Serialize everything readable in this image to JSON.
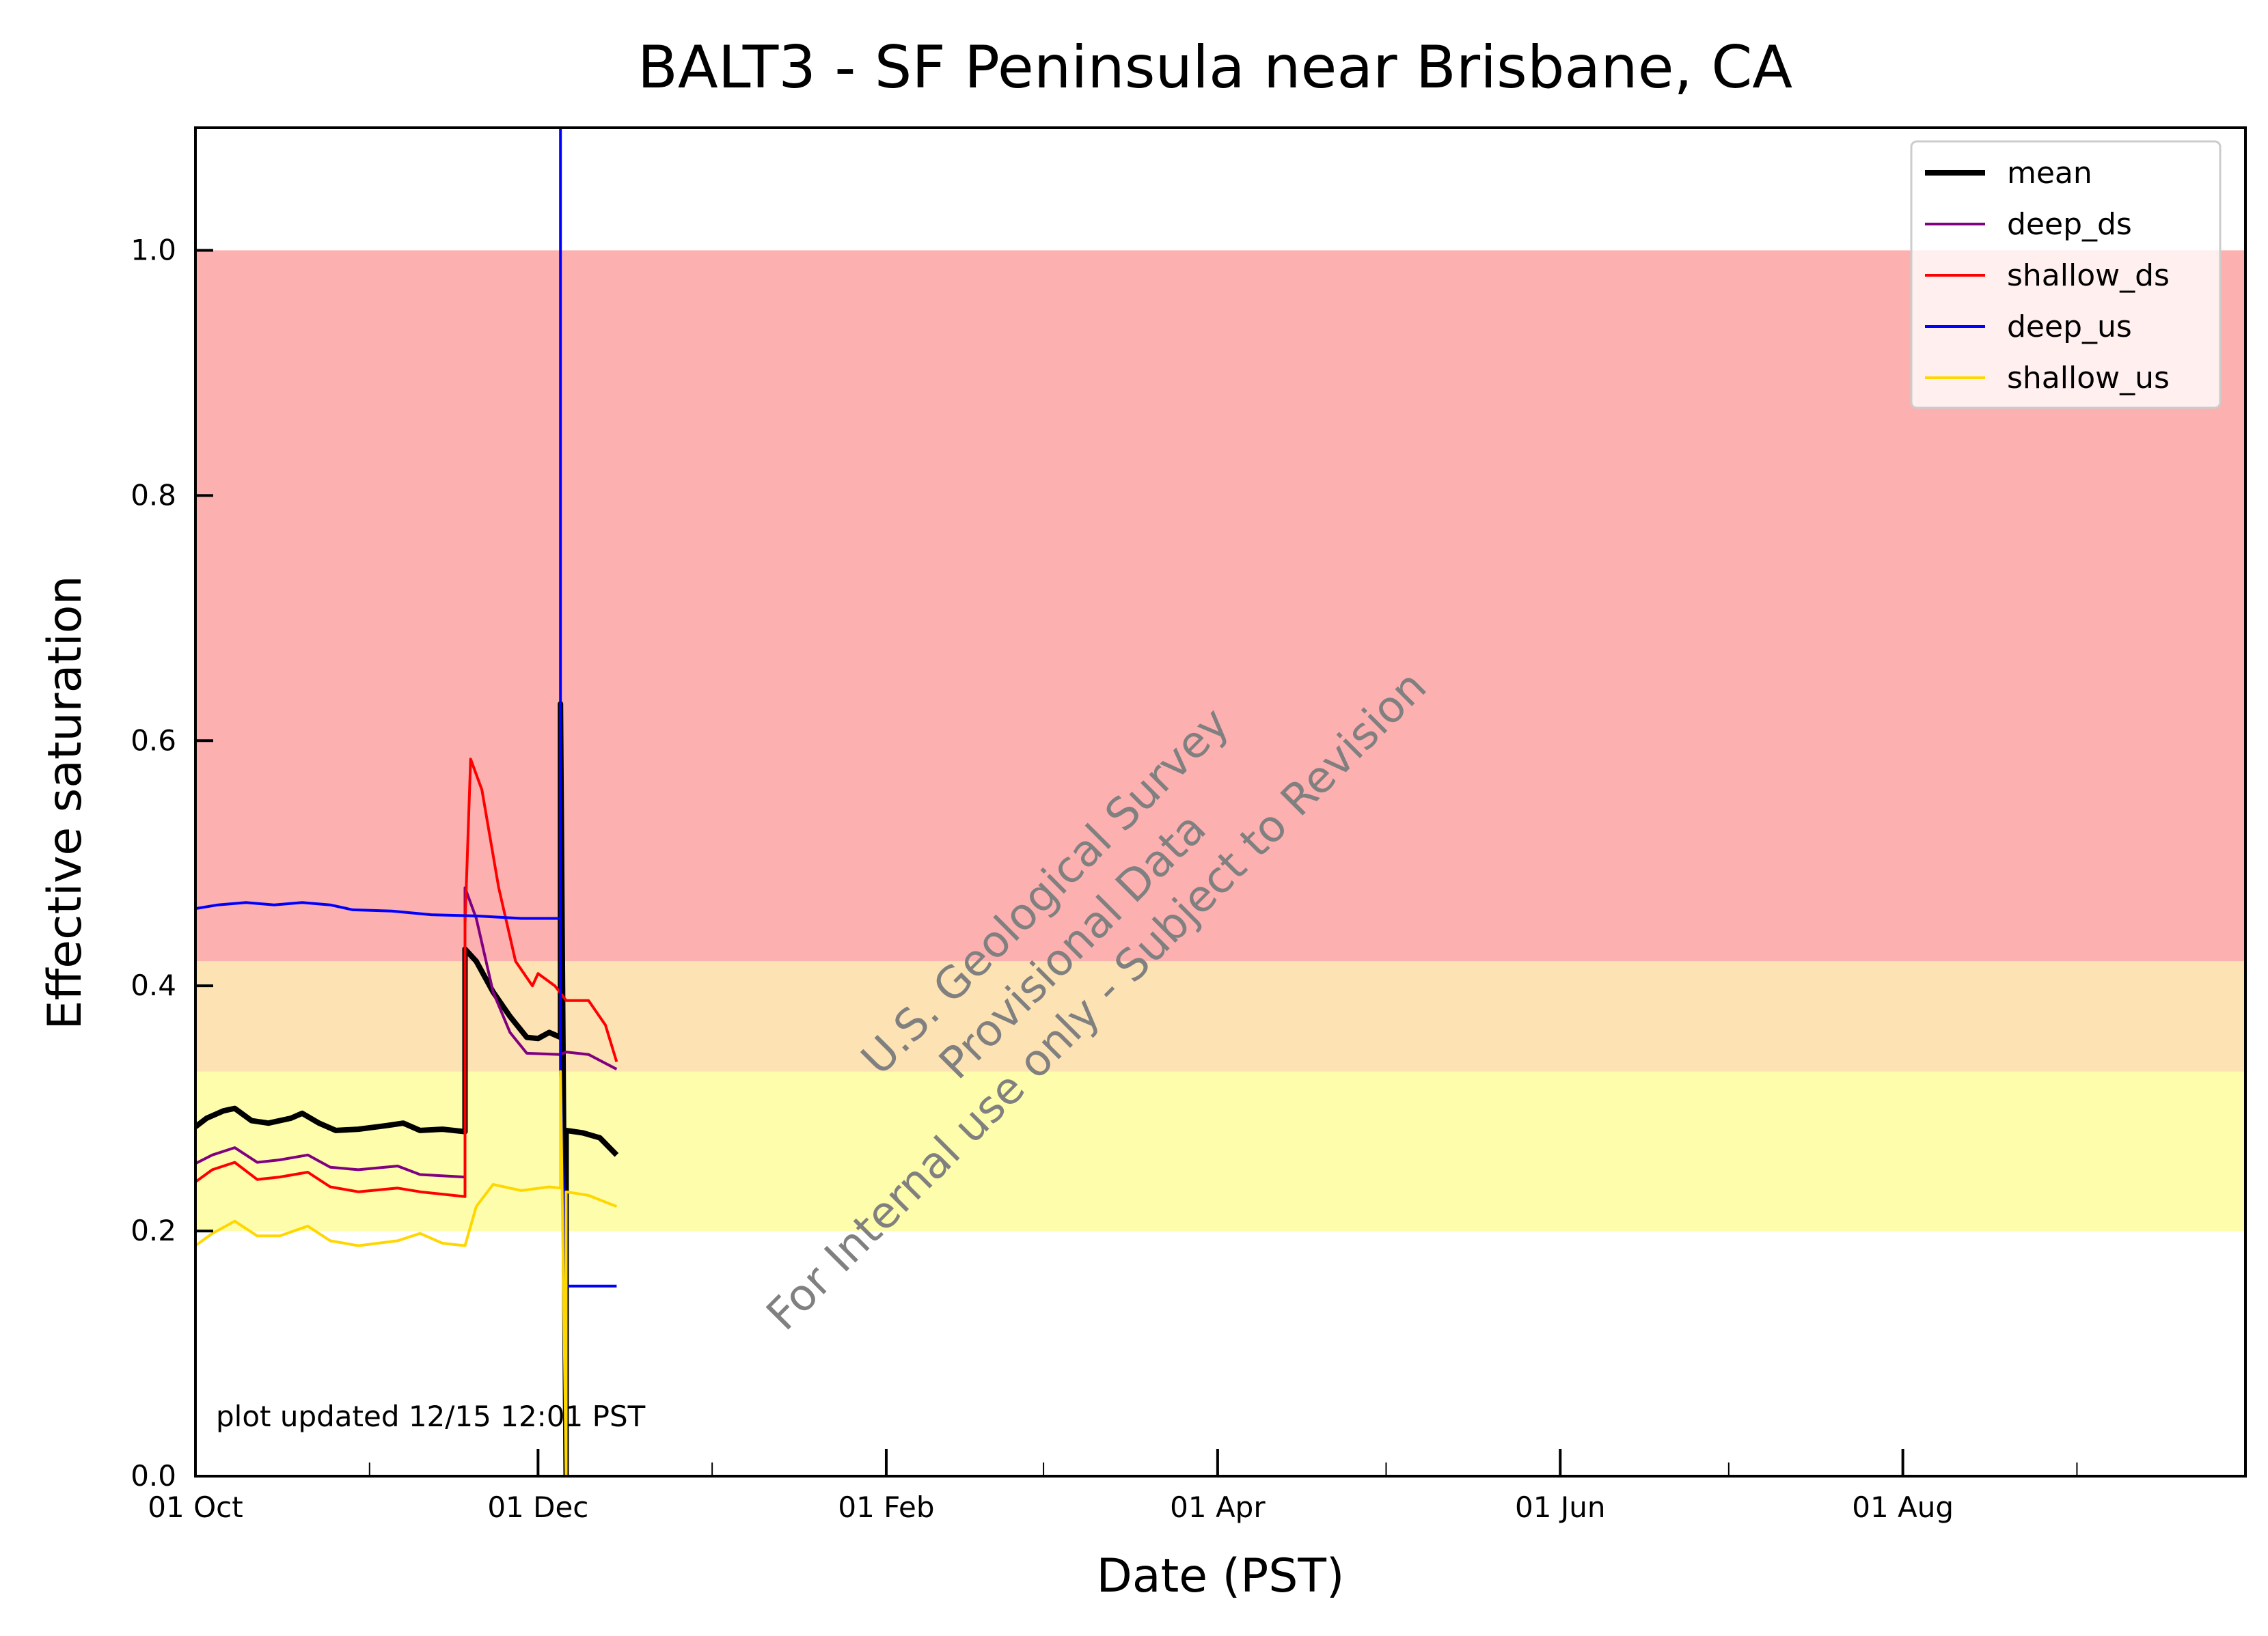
{
  "chart_data": {
    "type": "line",
    "title": "BALT3 - SF Peninsula near Brisbane, CA",
    "xlabel": "Date (PST)",
    "ylabel": "Effective saturation",
    "xlim": [
      "2024-10-01",
      "2025-10-01"
    ],
    "ylim": [
      0,
      1.1
    ],
    "x_ticks": [
      "01 Oct",
      "01 Dec",
      "01 Feb",
      "01 Apr",
      "01 Jun",
      "01 Aug"
    ],
    "y_ticks": [
      "0.0",
      "0.2",
      "0.4",
      "0.6",
      "0.8",
      "1.0"
    ],
    "grid": false,
    "legend_position": "top-right",
    "bands": [
      {
        "from": 0.42,
        "to": 1.0,
        "color": "#fdb0b0"
      },
      {
        "from": 0.33,
        "to": 0.42,
        "color": "#fde2b4"
      },
      {
        "from": 0.2,
        "to": 0.33,
        "color": "#fdfdac"
      }
    ],
    "annotation": "plot updated 12/15 12:01  PST",
    "watermark": [
      "U.S. Geological Survey",
      "Provisional Data",
      "For Internal use only - Subject to Revision"
    ],
    "series": [
      {
        "name": "mean",
        "color": "#000000",
        "width": 4,
        "points": [
          [
            "2024-10-01",
            0.285
          ],
          [
            "2024-10-03",
            0.292
          ],
          [
            "2024-10-06",
            0.298
          ],
          [
            "2024-10-08",
            0.3
          ],
          [
            "2024-10-11",
            0.29
          ],
          [
            "2024-10-14",
            0.288
          ],
          [
            "2024-10-18",
            0.292
          ],
          [
            "2024-10-20",
            0.296
          ],
          [
            "2024-10-23",
            0.288
          ],
          [
            "2024-10-26",
            0.282
          ],
          [
            "2024-10-30",
            0.283
          ],
          [
            "2024-11-04",
            0.286
          ],
          [
            "2024-11-07",
            0.288
          ],
          [
            "2024-11-10",
            0.282
          ],
          [
            "2024-11-14",
            0.283
          ],
          [
            "2024-11-18",
            0.281
          ],
          [
            "2024-11-18",
            0.43
          ],
          [
            "2024-11-20",
            0.42
          ],
          [
            "2024-11-23",
            0.395
          ],
          [
            "2024-11-26",
            0.375
          ],
          [
            "2024-11-29",
            0.358
          ],
          [
            "2024-12-01",
            0.357
          ],
          [
            "2024-12-03",
            0.362
          ],
          [
            "2024-12-05",
            0.358
          ],
          [
            "2024-12-05",
            0.63
          ],
          [
            "2024-12-06",
            0.0
          ],
          [
            "2024-12-06",
            0.282
          ],
          [
            "2024-12-09",
            0.28
          ],
          [
            "2024-12-12",
            0.276
          ],
          [
            "2024-12-15",
            0.262
          ]
        ]
      },
      {
        "name": "deep_ds",
        "color": "#800080",
        "width": 2,
        "points": [
          [
            "2024-10-01",
            0.255
          ],
          [
            "2024-10-04",
            0.262
          ],
          [
            "2024-10-08",
            0.268
          ],
          [
            "2024-10-12",
            0.256
          ],
          [
            "2024-10-16",
            0.258
          ],
          [
            "2024-10-21",
            0.262
          ],
          [
            "2024-10-25",
            0.252
          ],
          [
            "2024-10-30",
            0.25
          ],
          [
            "2024-11-06",
            0.253
          ],
          [
            "2024-11-10",
            0.246
          ],
          [
            "2024-11-18",
            0.244
          ],
          [
            "2024-11-18",
            0.48
          ],
          [
            "2024-11-20",
            0.455
          ],
          [
            "2024-11-23",
            0.395
          ],
          [
            "2024-11-26",
            0.362
          ],
          [
            "2024-11-29",
            0.345
          ],
          [
            "2024-12-05",
            0.344
          ],
          [
            "2024-12-06",
            0.346
          ],
          [
            "2024-12-10",
            0.344
          ],
          [
            "2024-12-15",
            0.332
          ]
        ]
      },
      {
        "name": "shallow_ds",
        "color": "#ff0000",
        "width": 2,
        "points": [
          [
            "2024-10-01",
            0.24
          ],
          [
            "2024-10-04",
            0.25
          ],
          [
            "2024-10-08",
            0.256
          ],
          [
            "2024-10-12",
            0.242
          ],
          [
            "2024-10-16",
            0.244
          ],
          [
            "2024-10-21",
            0.248
          ],
          [
            "2024-10-25",
            0.236
          ],
          [
            "2024-10-30",
            0.232
          ],
          [
            "2024-11-06",
            0.235
          ],
          [
            "2024-11-10",
            0.232
          ],
          [
            "2024-11-18",
            0.228
          ],
          [
            "2024-11-18",
            0.45
          ],
          [
            "2024-11-19",
            0.585
          ],
          [
            "2024-11-21",
            0.56
          ],
          [
            "2024-11-24",
            0.48
          ],
          [
            "2024-11-27",
            0.42
          ],
          [
            "2024-11-30",
            0.4
          ],
          [
            "2024-12-01",
            0.41
          ],
          [
            "2024-12-04",
            0.4
          ],
          [
            "2024-12-06",
            0.388
          ],
          [
            "2024-12-10",
            0.388
          ],
          [
            "2024-12-13",
            0.368
          ],
          [
            "2024-12-15",
            0.338
          ]
        ]
      },
      {
        "name": "deep_us",
        "color": "#0000ff",
        "width": 2,
        "points": [
          [
            "2024-10-01",
            0.463
          ],
          [
            "2024-10-05",
            0.466
          ],
          [
            "2024-10-10",
            0.468
          ],
          [
            "2024-10-15",
            0.466
          ],
          [
            "2024-10-20",
            0.468
          ],
          [
            "2024-10-25",
            0.466
          ],
          [
            "2024-10-29",
            0.462
          ],
          [
            "2024-11-05",
            0.461
          ],
          [
            "2024-11-12",
            0.458
          ],
          [
            "2024-11-20",
            0.457
          ],
          [
            "2024-11-28",
            0.455
          ],
          [
            "2024-12-05",
            0.455
          ],
          [
            "2024-12-05",
            1.1
          ],
          [
            "2024-12-05",
            0.33
          ],
          [
            "2024-12-06",
            0.155
          ],
          [
            "2024-12-15",
            0.155
          ]
        ]
      },
      {
        "name": "shallow_us",
        "color": "#ffd700",
        "width": 2,
        "points": [
          [
            "2024-10-01",
            0.188
          ],
          [
            "2024-10-04",
            0.198
          ],
          [
            "2024-10-08",
            0.208
          ],
          [
            "2024-10-12",
            0.196
          ],
          [
            "2024-10-16",
            0.196
          ],
          [
            "2024-10-21",
            0.204
          ],
          [
            "2024-10-25",
            0.192
          ],
          [
            "2024-10-30",
            0.188
          ],
          [
            "2024-11-06",
            0.192
          ],
          [
            "2024-11-10",
            0.198
          ],
          [
            "2024-11-14",
            0.19
          ],
          [
            "2024-11-18",
            0.188
          ],
          [
            "2024-11-20",
            0.22
          ],
          [
            "2024-11-23",
            0.238
          ],
          [
            "2024-11-28",
            0.233
          ],
          [
            "2024-12-03",
            0.236
          ],
          [
            "2024-12-05",
            0.235
          ],
          [
            "2024-12-05",
            0.33
          ],
          [
            "2024-12-06",
            0.0
          ],
          [
            "2024-12-06",
            0.232
          ],
          [
            "2024-12-10",
            0.229
          ],
          [
            "2024-12-15",
            0.22
          ]
        ]
      }
    ]
  }
}
